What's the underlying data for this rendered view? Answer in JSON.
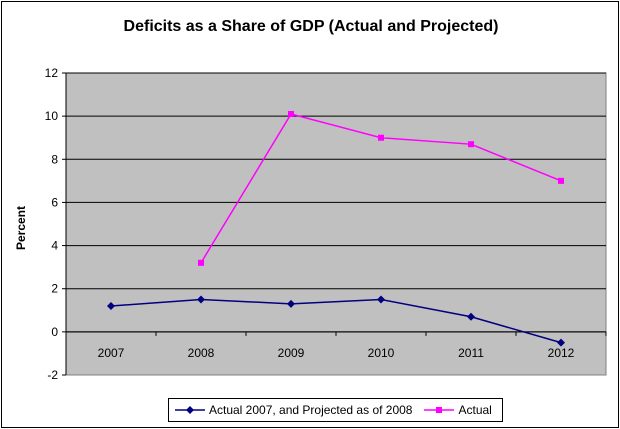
{
  "chart_data": {
    "type": "line",
    "title": "Deficits as a Share of GDP (Actual and Projected)",
    "xlabel": "",
    "ylabel": "Percent",
    "x": [
      "2007",
      "2008",
      "2009",
      "2010",
      "2011",
      "2012"
    ],
    "ylim": [
      -2,
      12
    ],
    "yticks": [
      -2,
      0,
      2,
      4,
      6,
      8,
      10,
      12
    ],
    "grid": true,
    "legend_position": "bottom",
    "series": [
      {
        "name": "Actual 2007, and Projected as of 2008",
        "color": "#000080",
        "marker": "diamond",
        "values": [
          1.2,
          1.5,
          1.3,
          1.5,
          0.7,
          -0.5
        ]
      },
      {
        "name": "Actual",
        "color": "#ff00ff",
        "marker": "square",
        "values": [
          null,
          3.2,
          10.1,
          9.0,
          8.7,
          7.0
        ]
      }
    ]
  }
}
